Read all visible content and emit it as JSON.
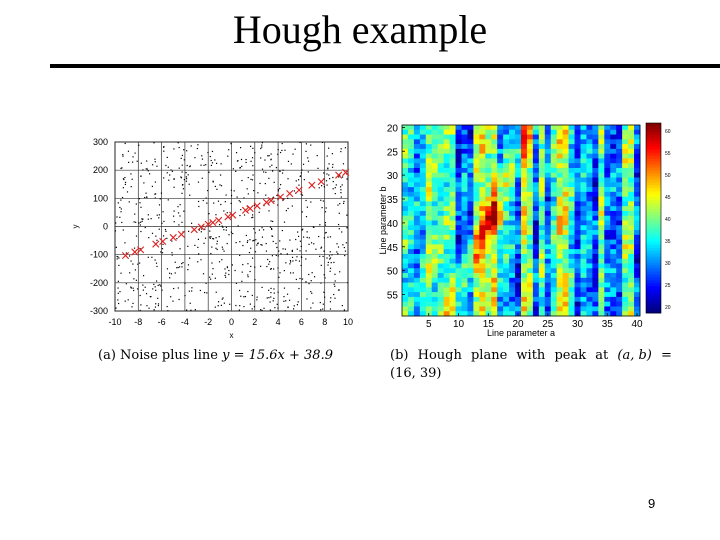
{
  "slide": {
    "title": "Hough example",
    "page_number": "9"
  },
  "captions": {
    "a_prefix": "(a)",
    "a_text": "Noise plus line",
    "a_equation": "y = 15.6x + 38.9",
    "b_prefix": "(b)",
    "b_line1": [
      "Hough",
      "plane",
      "with",
      "peak",
      "at",
      "(a, b)",
      "="
    ],
    "b_line2": "(16, 39)"
  },
  "chart_data": [
    {
      "type": "scatter",
      "title": "",
      "xlabel": "x",
      "ylabel": "y",
      "xlim": [
        -10,
        10
      ],
      "ylim": [
        -300,
        300
      ],
      "xticks": [
        "-10",
        "-8",
        "-6",
        "-4",
        "-2",
        "0",
        "2",
        "4",
        "6",
        "8",
        "10"
      ],
      "yticks": [
        "300",
        "200",
        "100",
        "0",
        "-100",
        "-200",
        "-300"
      ],
      "grid": true,
      "line": {
        "slope": 15.6,
        "intercept": 38.9
      },
      "line_points_x": [
        -9.1,
        -8.3,
        -7.8,
        -6.5,
        -5.9,
        -5.0,
        -4.3,
        -3.2,
        -2.6,
        -2.0,
        -1.6,
        -1.1,
        -0.3,
        0.1,
        1.2,
        1.6,
        2.2,
        3.0,
        3.4,
        4.2,
        5.0,
        5.8,
        6.9,
        7.7,
        9.2,
        9.8
      ],
      "noise_point_count": 800,
      "noise_marker_color": "#000000",
      "line_marker_color": "#e0201e"
    },
    {
      "type": "heatmap",
      "title": "",
      "xlabel": "Line parameter a",
      "ylabel": "Line parameter b",
      "xlim": [
        1,
        40
      ],
      "ylim": [
        20,
        59
      ],
      "xticks": [
        "5",
        "10",
        "15",
        "20",
        "25",
        "30",
        "35",
        "40"
      ],
      "yticks": [
        "20",
        "25",
        "30",
        "35",
        "40",
        "45",
        "50",
        "55"
      ],
      "peak": {
        "a": 16,
        "b": 39
      },
      "colorbar": {
        "min": 20,
        "max": 60,
        "ticks": [
          "60",
          "55",
          "50",
          "45",
          "40",
          "35",
          "30",
          "25",
          "20"
        ]
      },
      "colormap": "jet"
    }
  ]
}
